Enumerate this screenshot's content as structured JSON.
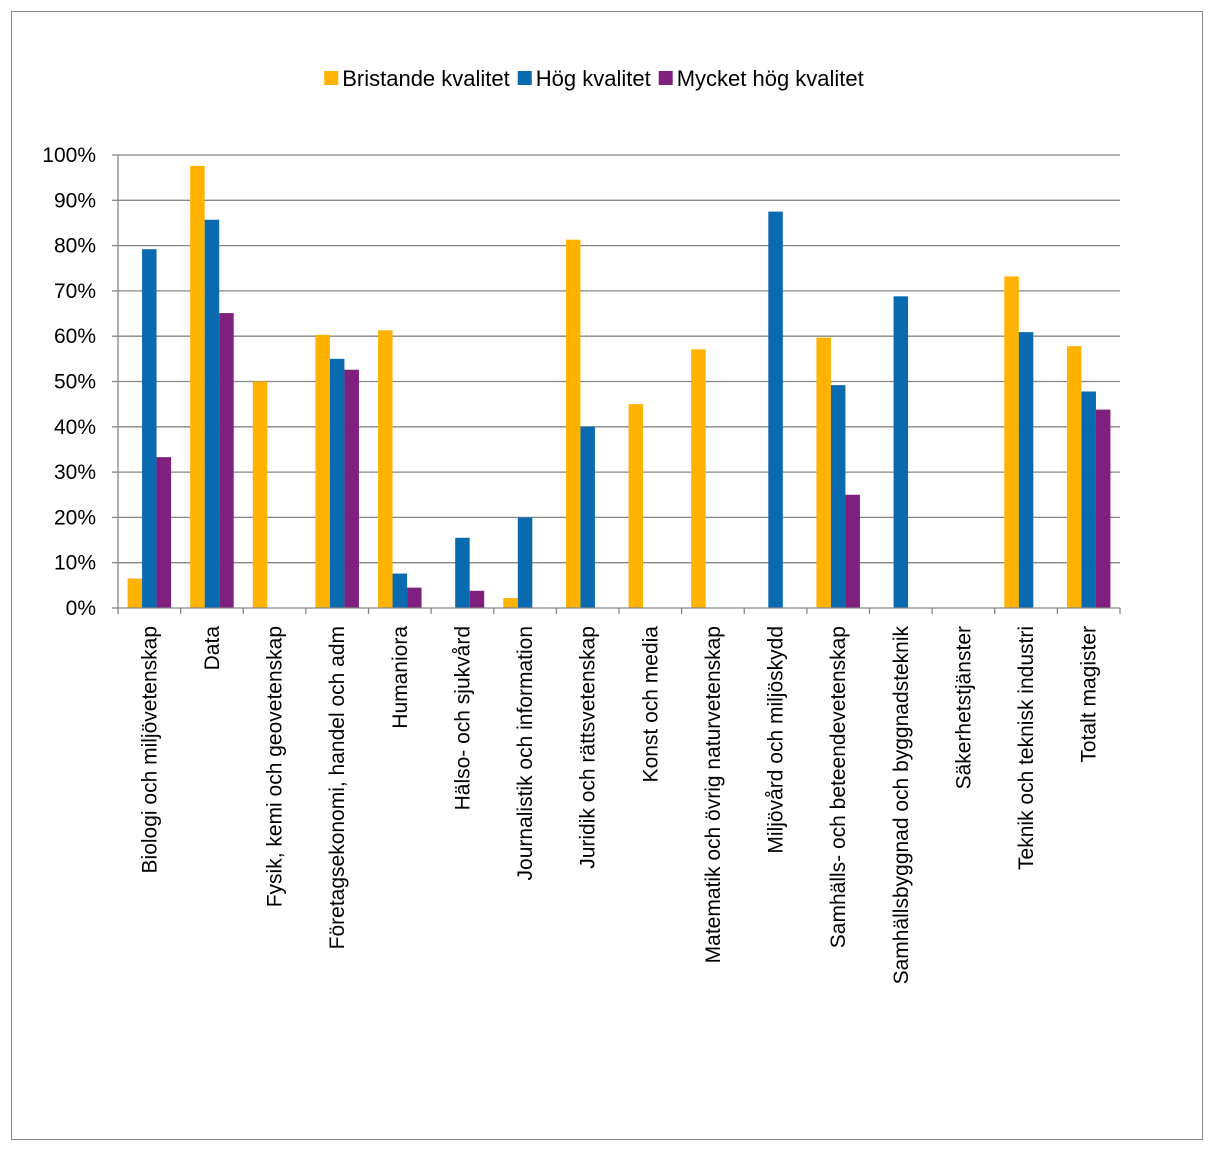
{
  "chart_data": {
    "type": "bar",
    "title": "",
    "xlabel": "",
    "ylabel": "",
    "ylim": [
      0,
      100
    ],
    "yticks": [
      "0%",
      "10%",
      "20%",
      "30%",
      "40%",
      "50%",
      "60%",
      "70%",
      "80%",
      "90%",
      "100%"
    ],
    "grid": true,
    "legend_position": "top",
    "categories": [
      "Biologi och miljövetenskap",
      "Data",
      "Fysik, kemi och geovetenskap",
      "Företagsekonomi, handel och adm",
      "Humaniora",
      "Hälso- och sjukvård",
      "Journalistik och information",
      "Juridik och rättsvetenskap",
      "Konst och media",
      "Matematik och övrig naturvetenskap",
      "Miljövård och miljöskydd",
      "Samhälls- och beteendevetenskap",
      "Samhällsbyggnad och byggnadsteknik",
      "Säkerhetstjänster",
      "Teknik och teknisk industri",
      "Totalt magister"
    ],
    "series": [
      {
        "name": "Bristande kvalitet",
        "color": "#FFB300",
        "values": [
          6.5,
          97.6,
          50,
          60.3,
          61.3,
          0,
          2.2,
          81.3,
          45,
          57.1,
          0,
          59.7,
          0,
          0,
          73.2,
          57.8
        ]
      },
      {
        "name": "Hög kvalitet",
        "color": "#0A6AB0",
        "values": [
          79.2,
          85.7,
          0,
          55,
          7.6,
          15.5,
          20,
          40,
          0,
          0,
          87.5,
          49.2,
          68.8,
          0,
          60.9,
          47.8
        ]
      },
      {
        "name": "Mycket hög kvalitet",
        "color": "#7F1F7E",
        "values": [
          33.3,
          65.1,
          0,
          52.6,
          4.5,
          3.8,
          0,
          0,
          0,
          0,
          0,
          25,
          0,
          0,
          0,
          43.8
        ]
      }
    ]
  }
}
